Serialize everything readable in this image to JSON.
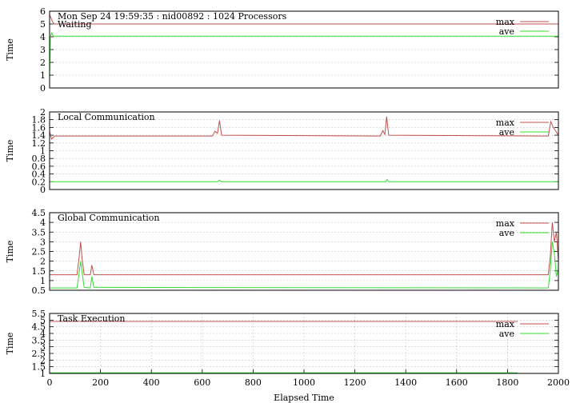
{
  "chart_data": [
    {
      "type": "line",
      "title": "Mon Sep 24 19:59:35 : nid00892 : 1024 Processors",
      "subtitle": "Waiting",
      "ylabel": "Time",
      "xlim": [
        0,
        2000
      ],
      "ylim": [
        0,
        6
      ],
      "yticks": [
        "0",
        "1",
        "2",
        "3",
        "4",
        "5",
        "6"
      ],
      "grid": true,
      "legend_position": "top-right",
      "series": [
        {
          "name": "max",
          "color": "#c0504d",
          "points": [
            [
              0,
              5.7
            ],
            [
              5,
              5.5
            ],
            [
              12,
              5.15
            ],
            [
              20,
              5.0
            ],
            [
              2000,
              5.0
            ]
          ]
        },
        {
          "name": "ave",
          "color": "#33dd33",
          "points": [
            [
              0,
              0.8
            ],
            [
              3,
              4.0
            ],
            [
              8,
              4.3
            ],
            [
              15,
              4.05
            ],
            [
              2000,
              4.05
            ]
          ]
        }
      ]
    },
    {
      "type": "line",
      "title": "Local Communication",
      "ylabel": "Time",
      "xlim": [
        0,
        2000
      ],
      "ylim": [
        0,
        2
      ],
      "yticks": [
        "0",
        "0.2",
        "0.4",
        "0.6",
        "0.8",
        "1",
        "1.2",
        "1.4",
        "1.6",
        "1.8",
        "2"
      ],
      "grid": true,
      "legend_position": "top-right",
      "series": [
        {
          "name": "max",
          "color": "#c0504d",
          "points": [
            [
              0,
              1.5
            ],
            [
              8,
              1.3
            ],
            [
              20,
              1.38
            ],
            [
              640,
              1.38
            ],
            [
              650,
              1.5
            ],
            [
              660,
              1.45
            ],
            [
              668,
              1.78
            ],
            [
              676,
              1.4
            ],
            [
              1300,
              1.38
            ],
            [
              1310,
              1.52
            ],
            [
              1318,
              1.42
            ],
            [
              1325,
              1.88
            ],
            [
              1333,
              1.4
            ],
            [
              1960,
              1.38
            ],
            [
              1970,
              1.75
            ],
            [
              1980,
              1.6
            ],
            [
              2000,
              1.4
            ]
          ]
        },
        {
          "name": "ave",
          "color": "#33dd33",
          "points": [
            [
              0,
              0.2
            ],
            [
              660,
              0.2
            ],
            [
              668,
              0.24
            ],
            [
              676,
              0.2
            ],
            [
              1320,
              0.2
            ],
            [
              1326,
              0.26
            ],
            [
              1334,
              0.2
            ],
            [
              2000,
              0.2
            ]
          ]
        }
      ]
    },
    {
      "type": "line",
      "title": "Global Communication",
      "ylabel": "Time",
      "xlim": [
        0,
        2000
      ],
      "ylim": [
        0.5,
        4.5
      ],
      "yticks": [
        "0.5",
        "1",
        "1.5",
        "2",
        "2.5",
        "3",
        "3.5",
        "4",
        "4.5"
      ],
      "grid": true,
      "legend_position": "top-right",
      "series": [
        {
          "name": "max",
          "color": "#c0504d",
          "points": [
            [
              0,
              1.3
            ],
            [
              108,
              1.3
            ],
            [
              116,
              2.2
            ],
            [
              122,
              3.0
            ],
            [
              128,
              2.1
            ],
            [
              136,
              1.3
            ],
            [
              160,
              1.3
            ],
            [
              166,
              1.8
            ],
            [
              174,
              1.3
            ],
            [
              1960,
              1.3
            ],
            [
              1968,
              2.2
            ],
            [
              1976,
              4.0
            ],
            [
              1984,
              3.0
            ],
            [
              1992,
              3.5
            ],
            [
              2000,
              2.0
            ]
          ]
        },
        {
          "name": "ave",
          "color": "#33dd33",
          "points": [
            [
              0,
              0.62
            ],
            [
              108,
              0.62
            ],
            [
              116,
              1.4
            ],
            [
              122,
              2.0
            ],
            [
              128,
              1.4
            ],
            [
              136,
              0.65
            ],
            [
              160,
              0.62
            ],
            [
              166,
              1.2
            ],
            [
              174,
              0.65
            ],
            [
              1960,
              0.62
            ],
            [
              1968,
              1.5
            ],
            [
              1976,
              3.0
            ],
            [
              1984,
              2.4
            ],
            [
              1992,
              1.2
            ],
            [
              2000,
              1.6
            ]
          ]
        }
      ]
    },
    {
      "type": "line",
      "title": "Task Execution",
      "ylabel": "Time",
      "xlabel": "Elapsed Time",
      "xlim": [
        0,
        2000
      ],
      "ylim": [
        1,
        5.5
      ],
      "yticks": [
        "1",
        "1.5",
        "2",
        "2.5",
        "3",
        "3.5",
        "4",
        "4.5",
        "5",
        "5.5"
      ],
      "xticks": [
        "0",
        "200",
        "400",
        "600",
        "800",
        "1000",
        "1200",
        "1400",
        "1600",
        "1800",
        "2000"
      ],
      "grid": true,
      "legend_position": "top-right",
      "series": [
        {
          "name": "max",
          "color": "#c0504d",
          "points": [
            [
              0,
              4.9
            ],
            [
              1840,
              4.9
            ]
          ]
        },
        {
          "name": "ave",
          "color": "#33dd33",
          "points": [
            [
              0,
              1.05
            ],
            [
              1840,
              1.05
            ]
          ]
        }
      ]
    }
  ]
}
